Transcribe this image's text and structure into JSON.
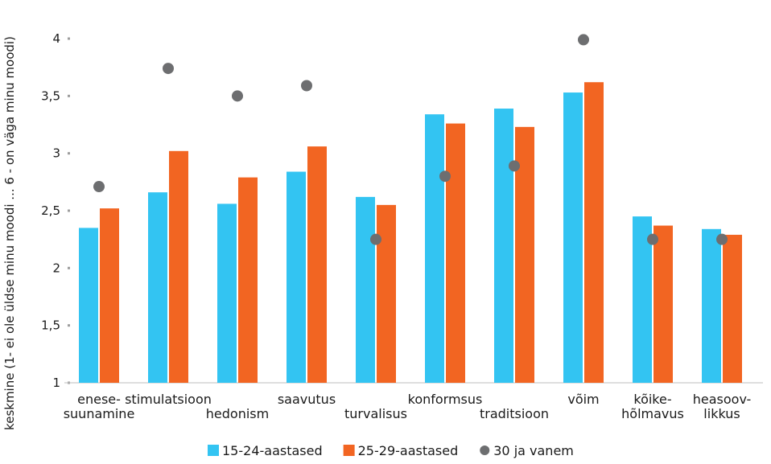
{
  "chart_data": {
    "type": "bar",
    "ylabel": "keskmine (1- ei ole üldse minu moodi ... 6 - on väga minu moodi)",
    "ylim": [
      1,
      4
    ],
    "yticks": [
      "1",
      "1,5",
      "2",
      "2,5",
      "3",
      "3,5",
      "4"
    ],
    "ytick_values": [
      1,
      1.5,
      2,
      2.5,
      3,
      3.5,
      4
    ],
    "categories": [
      {
        "lines": [
          "enese-",
          "suunamine"
        ],
        "row": 0
      },
      {
        "lines": [
          "stimulatsioon"
        ],
        "row": 0
      },
      {
        "lines": [
          "hedonism"
        ],
        "row": 1
      },
      {
        "lines": [
          "saavutus"
        ],
        "row": 0
      },
      {
        "lines": [
          "turvalisus"
        ],
        "row": 1
      },
      {
        "lines": [
          "konformsus"
        ],
        "row": 0
      },
      {
        "lines": [
          "traditsioon"
        ],
        "row": 1
      },
      {
        "lines": [
          "võim"
        ],
        "row": 0
      },
      {
        "lines": [
          "kõike-",
          "hõlmavus"
        ],
        "row": 0
      },
      {
        "lines": [
          "heasoov-",
          "likkus"
        ],
        "row": 0
      }
    ],
    "series": [
      {
        "name": "15-24-aastased",
        "kind": "bar",
        "color": "#33c4f2",
        "values": [
          2.35,
          2.66,
          2.56,
          2.84,
          2.62,
          3.34,
          3.39,
          3.53,
          2.45,
          2.34
        ]
      },
      {
        "name": "25-29-aastased",
        "kind": "bar",
        "color": "#f26522",
        "values": [
          2.52,
          3.02,
          2.79,
          3.06,
          2.55,
          3.26,
          3.23,
          3.62,
          2.37,
          2.29
        ]
      },
      {
        "name": "30 ja vanem",
        "kind": "dot",
        "color": "#6d6e70",
        "values": [
          2.71,
          3.74,
          3.5,
          3.59,
          2.25,
          2.8,
          2.89,
          3.99,
          2.25,
          2.25
        ]
      }
    ],
    "grid": false,
    "legend_position": "bottom"
  }
}
